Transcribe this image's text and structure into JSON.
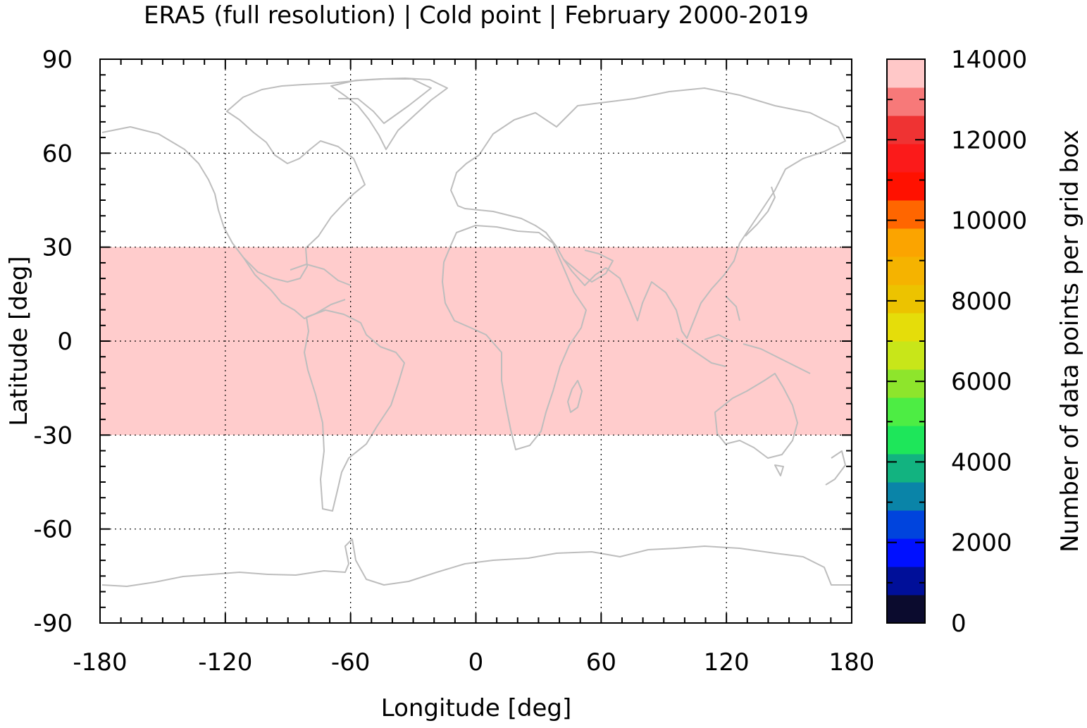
{
  "chart_data": {
    "type": "heatmap",
    "title": "ERA5 (full resolution) | Cold point | February 2000-2019",
    "xlabel": "Longitude [deg]",
    "ylabel": "Latitude [deg]",
    "xlim": [
      -180,
      180
    ],
    "ylim": [
      -90,
      90
    ],
    "xticks": [
      -180,
      -120,
      -60,
      0,
      60,
      120,
      180
    ],
    "yticks": [
      90,
      60,
      30,
      0,
      -30,
      -60,
      -90
    ],
    "grid": true,
    "background_map": "world coastlines",
    "coastline_color": "#bdbdbd",
    "regions": [
      {
        "lon": [
          -180,
          180
        ],
        "lat": [
          -30,
          30
        ],
        "value": 14000,
        "color": "#ffcccc"
      }
    ],
    "colorbar": {
      "label": "Number of data points per grid box",
      "range": [
        0,
        14000
      ],
      "ticks": [
        0,
        2000,
        4000,
        6000,
        8000,
        10000,
        12000,
        14000
      ],
      "colors": [
        "#0b0b2e",
        "#000f99",
        "#0010ff",
        "#0044dd",
        "#0a84a8",
        "#12b380",
        "#1ee65a",
        "#4ded44",
        "#8ee52c",
        "#c8e619",
        "#e5dd0a",
        "#ecc300",
        "#f5b300",
        "#fba400",
        "#ff6600",
        "#ff1100",
        "#fb1a1a",
        "#ef3333",
        "#f77979",
        "#ffc8c8"
      ]
    }
  }
}
